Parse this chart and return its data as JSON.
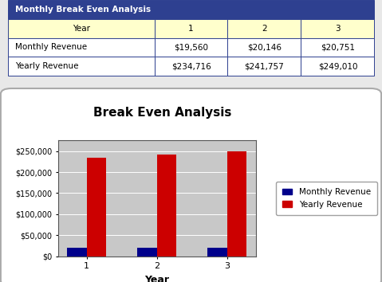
{
  "title": "Break Even Analysis",
  "table_title": "Monthly Break Even Analysis",
  "years": [
    1,
    2,
    3
  ],
  "monthly_revenue": [
    19560,
    20146,
    20751
  ],
  "yearly_revenue": [
    234716,
    241757,
    249010
  ],
  "monthly_label": "Monthly Revenue",
  "yearly_label": "Yearly Revenue",
  "xlabel": "Year",
  "bar_color_monthly": "#00008B",
  "bar_color_yearly": "#CC0000",
  "table_header_bg": "#2E4090",
  "table_header_fg": "#FFFFFF",
  "table_year_row_bg": "#FFFFCC",
  "table_data_bg": "#FFFFFF",
  "table_border_color": "#2E4090",
  "chart_bg": "#C8C8C8",
  "chart_outer_bg": "#FFFFFF",
  "ylim": [
    0,
    275000
  ],
  "yticks": [
    0,
    50000,
    100000,
    150000,
    200000,
    250000
  ],
  "fig_bg": "#E8E8E8"
}
